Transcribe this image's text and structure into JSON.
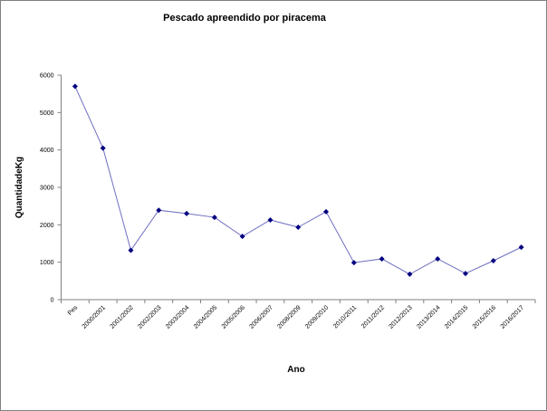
{
  "chart_data": {
    "type": "line",
    "title": "Pescado apreendido por piracema",
    "x_label": "Ano",
    "y_label": "QuantidadeKg",
    "categories": [
      "Pes",
      "2000/2001",
      "2001/2002",
      "2002/2003",
      "2003/2004",
      "2004/2005",
      "2005/2006",
      "2006/2007",
      "2008/2009",
      "2009/2010",
      "2010/2011",
      "2011/2012",
      "2012/2013",
      "2013/2014",
      "2014/2015",
      "2015/2016",
      "2016/2017"
    ],
    "series": [
      {
        "name": "QuantidadeKg",
        "line_color": "#6f6fc0",
        "color": "#000080",
        "values": [
          5700,
          4050,
          1320,
          2390,
          2300,
          2200,
          1690,
          2130,
          1935,
          2350,
          990,
          1090,
          680,
          1090,
          700,
          1040,
          1400
        ]
      }
    ],
    "ylim": [
      0,
      6000
    ],
    "yticks": [
      0,
      1000,
      2000,
      3000,
      4000,
      5000,
      6000
    ],
    "grid": false
  }
}
